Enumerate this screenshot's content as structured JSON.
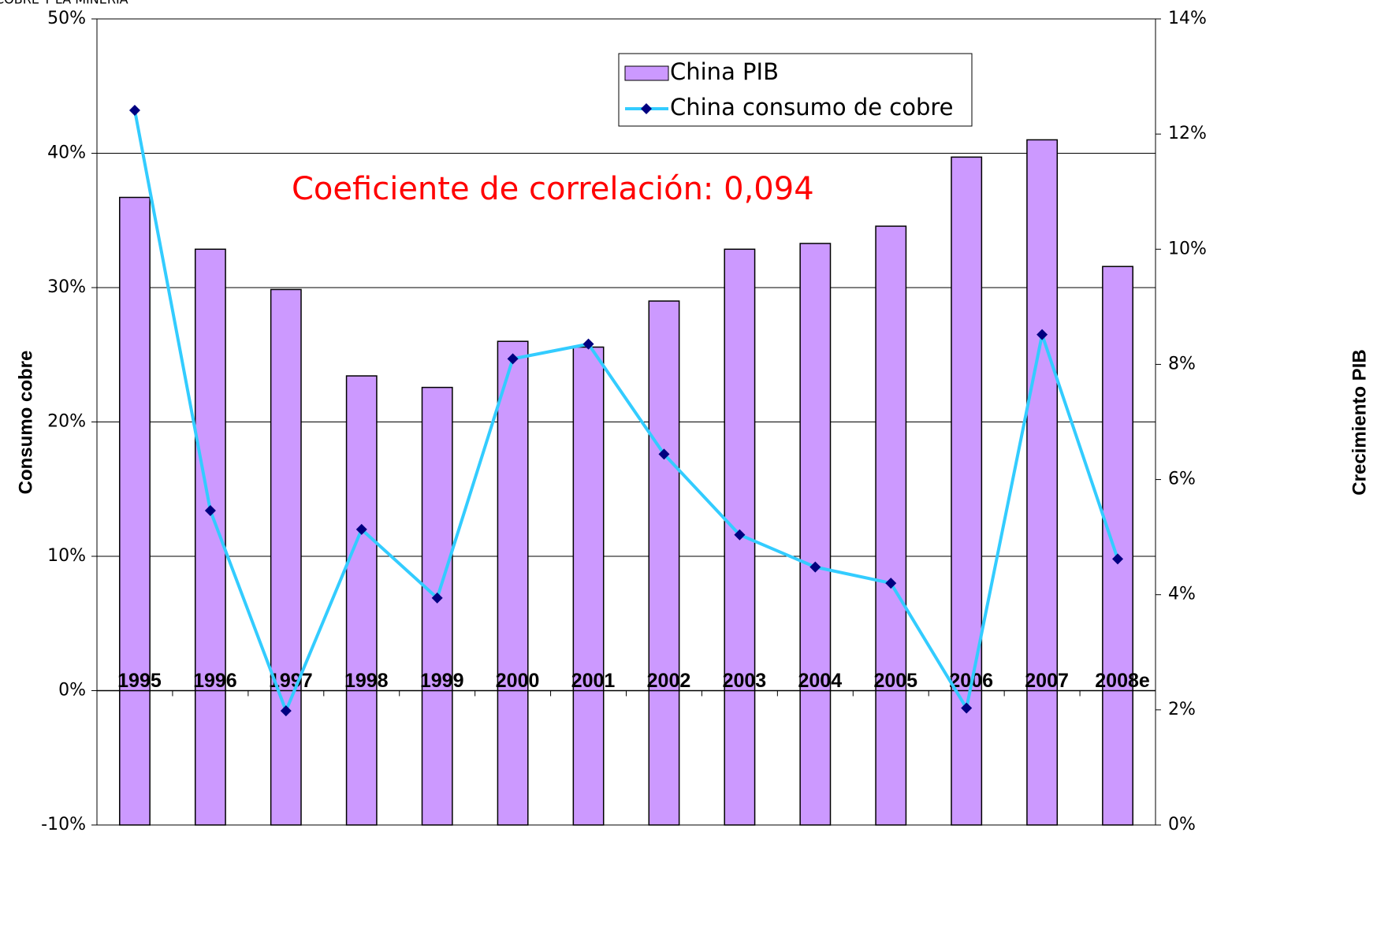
{
  "chart_data": {
    "type": "bar",
    "title": "COBRE Y LA MINERIA",
    "annotation": "Coeficiente de correlación: 0,094",
    "ylabel": "Consumo cobre",
    "y2label": "Crecimiento PIB",
    "categories": [
      "1995",
      "1996",
      "1997",
      "1998",
      "1999",
      "2000",
      "2001",
      "2002",
      "2003",
      "2004",
      "2005",
      "2006",
      "2007",
      "2008e"
    ],
    "series": [
      {
        "name": "China PIB",
        "type": "bar",
        "axis": "y2",
        "color": "#cc99ff",
        "values": [
          10.9,
          10.0,
          9.3,
          7.8,
          7.6,
          8.4,
          8.3,
          9.1,
          10.0,
          10.1,
          10.4,
          11.6,
          11.9,
          9.7
        ]
      },
      {
        "name": "China consumo de cobre",
        "type": "line",
        "color": "#33ccff",
        "marker_color": "#000080",
        "values": [
          43.2,
          13.4,
          -1.5,
          12.0,
          6.9,
          24.7,
          25.8,
          17.6,
          11.6,
          9.2,
          8.0,
          -1.3,
          26.5,
          9.8
        ]
      }
    ],
    "ylim": [
      -10,
      50
    ],
    "yticks": [
      {
        "value": -10,
        "label": "-10%"
      },
      {
        "value": 0,
        "label": "0%"
      },
      {
        "value": 10,
        "label": "10%"
      },
      {
        "value": 20,
        "label": "20%"
      },
      {
        "value": 30,
        "label": "30%"
      },
      {
        "value": 40,
        "label": "40%"
      },
      {
        "value": 50,
        "label": "50%"
      }
    ],
    "y2lim": [
      0,
      14
    ],
    "y2ticks": [
      {
        "value": 0,
        "label": "0%"
      },
      {
        "value": 2,
        "label": "2%"
      },
      {
        "value": 4,
        "label": "4%"
      },
      {
        "value": 6,
        "label": "6%"
      },
      {
        "value": 8,
        "label": "8%"
      },
      {
        "value": 10,
        "label": "10%"
      },
      {
        "value": 12,
        "label": "12%"
      },
      {
        "value": 14,
        "label": "14%"
      }
    ],
    "grid": true
  }
}
